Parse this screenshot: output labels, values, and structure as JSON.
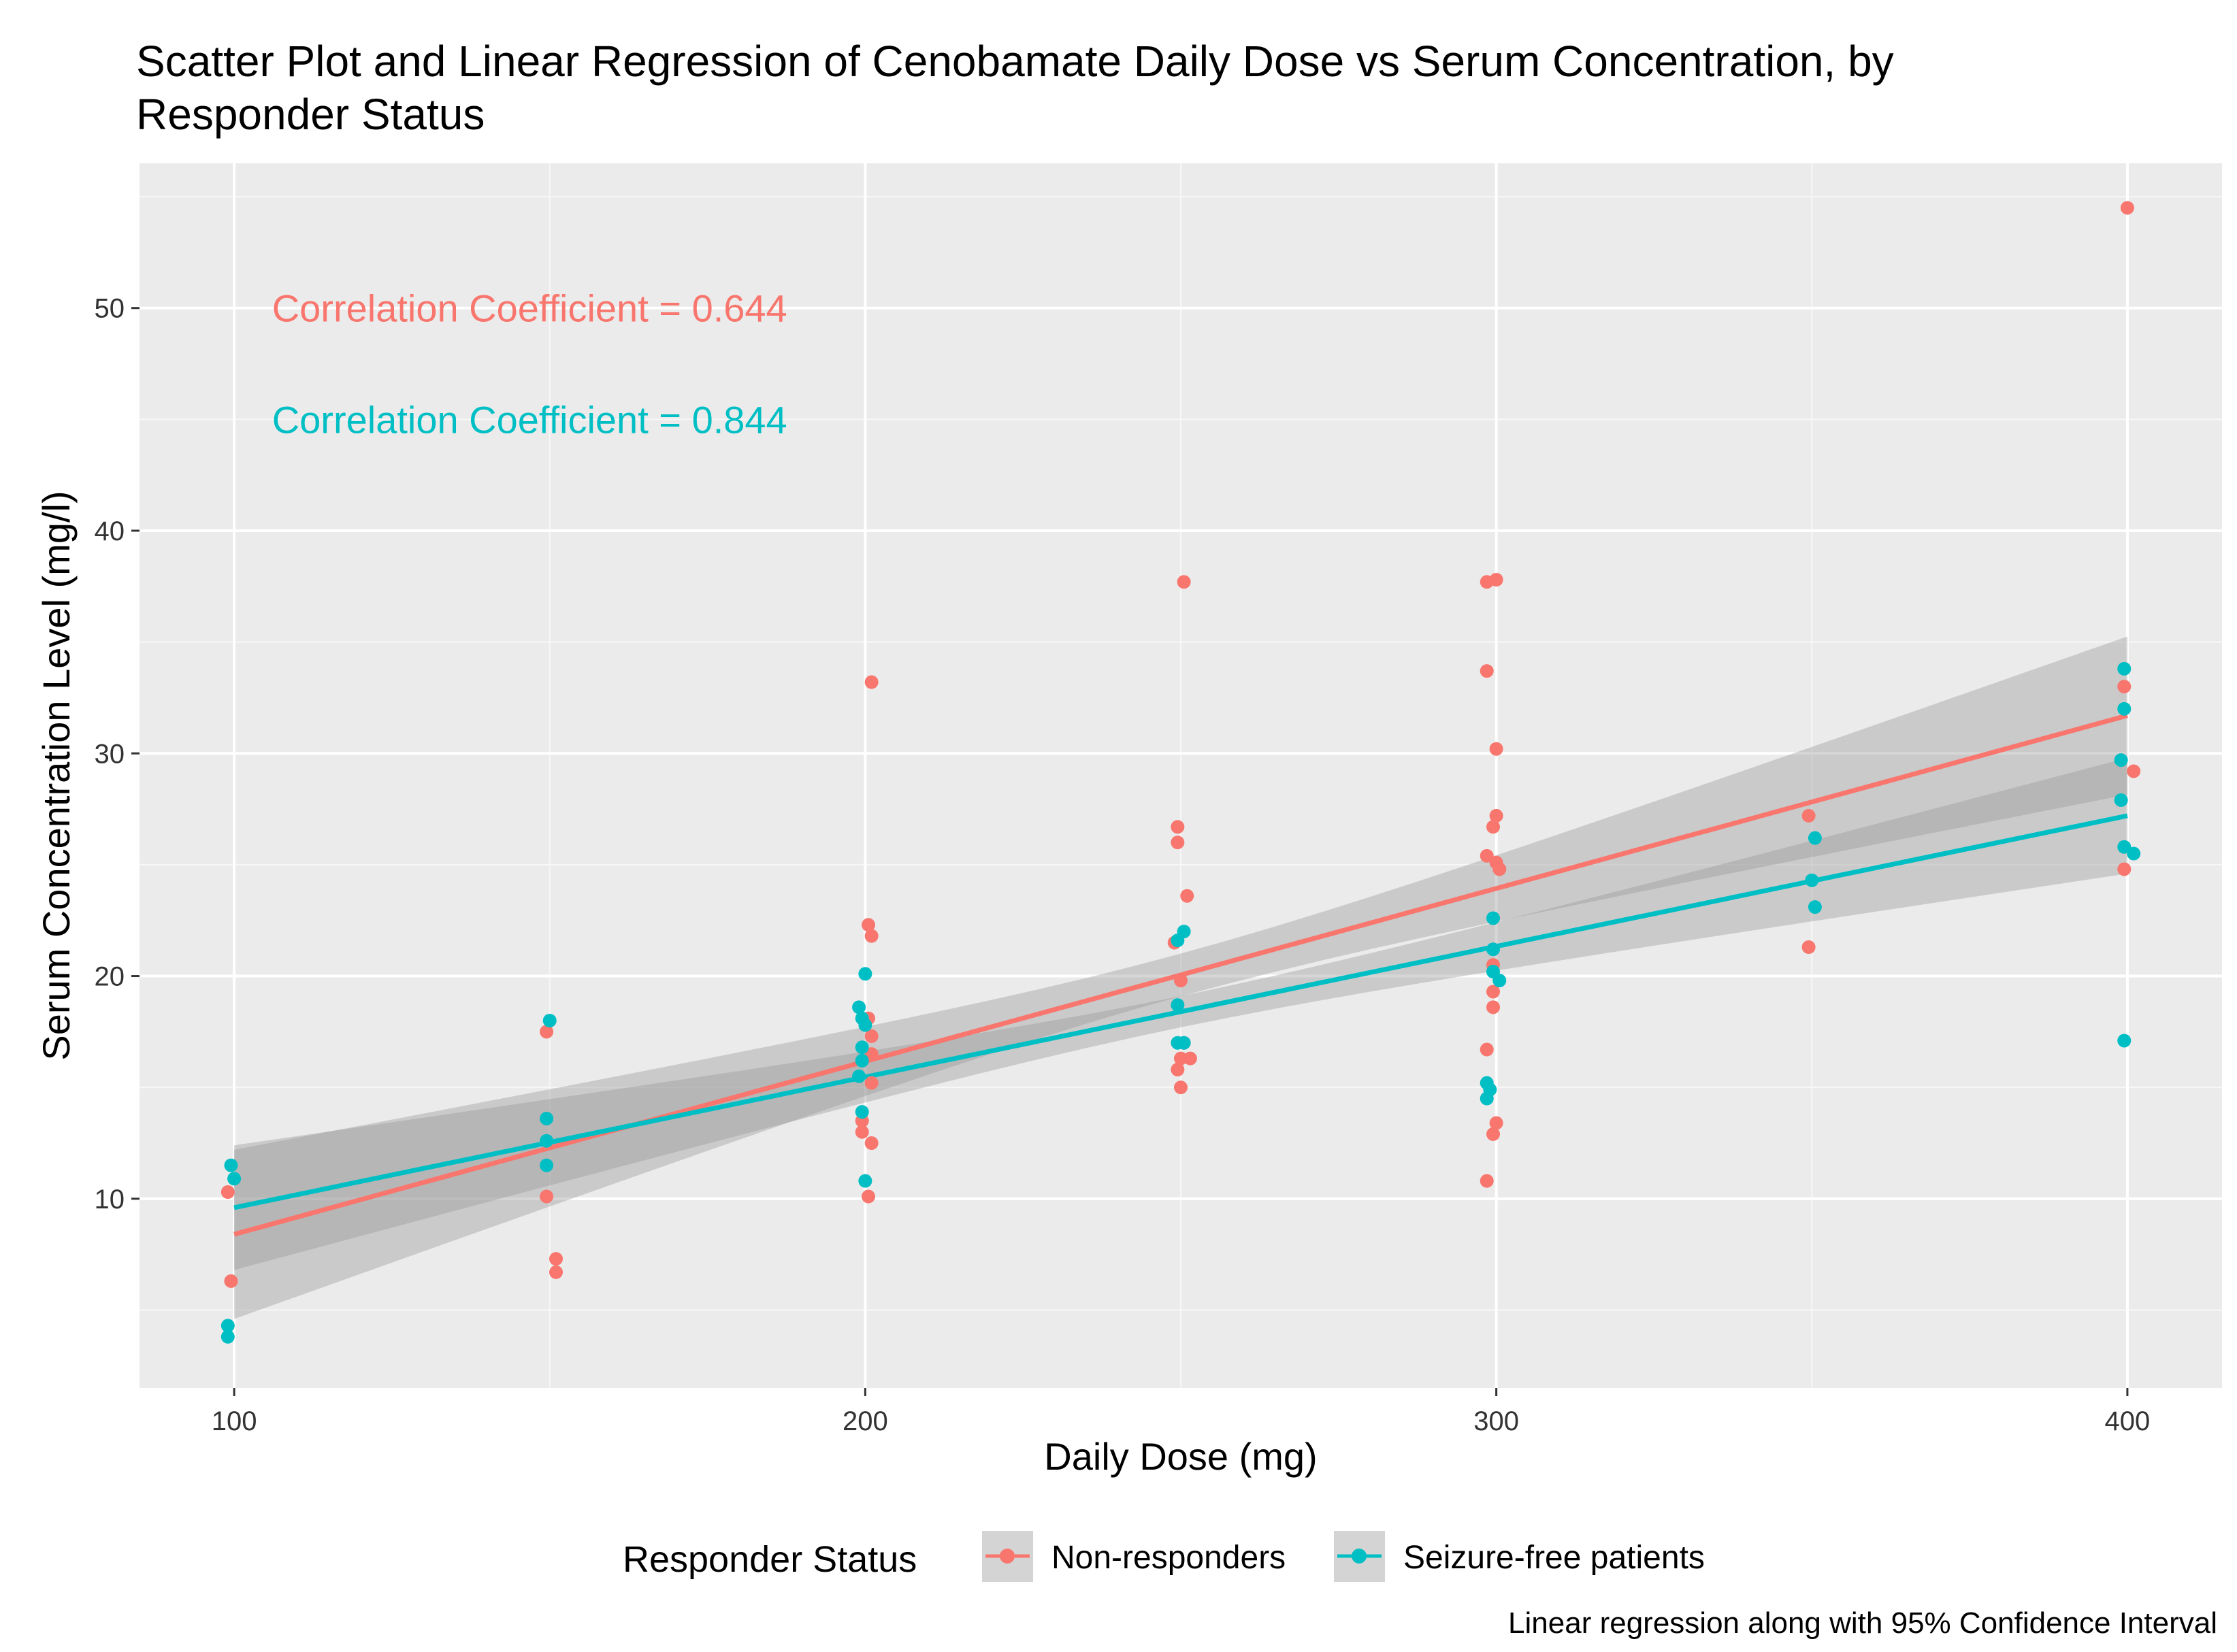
{
  "chart_data": {
    "type": "scatter",
    "title_line1": "Scatter Plot and Linear Regression of Cenobamate Daily Dose vs Serum Concentration, by",
    "title_line2": "Responder Status",
    "xlabel": "Daily Dose (mg)",
    "ylabel": "Serum Concentration Level (mg/l)",
    "xlim": [
      85,
      415
    ],
    "ylim": [
      1.5,
      56.5
    ],
    "x_ticks": [
      100,
      200,
      300,
      400
    ],
    "y_ticks": [
      10,
      20,
      30,
      40,
      50
    ],
    "x_tick_labels": [
      "100",
      "200",
      "300",
      "400"
    ],
    "y_tick_labels": [
      "10",
      "20",
      "30",
      "40",
      "50"
    ],
    "grid": true,
    "legend": {
      "title": "Responder Status",
      "position": "bottom",
      "items": [
        "Non-responders",
        "Seizure-free patients"
      ]
    },
    "annotations": [
      {
        "text": "Correlation Coefficient = 0.644",
        "series": 0,
        "x": 106,
        "y": 50
      },
      {
        "text": "Correlation Coefficient = 0.844",
        "series": 1,
        "x": 106,
        "y": 45
      }
    ],
    "caption": "Linear regression along with 95% Confidence Interval",
    "series": [
      {
        "name": "Non-responders",
        "color": "#F8766D",
        "points": [
          [
            99,
            10.3
          ],
          [
            99.5,
            6.3
          ],
          [
            149.5,
            17.5
          ],
          [
            149.5,
            10.1
          ],
          [
            151,
            7.3
          ],
          [
            151,
            6.7
          ],
          [
            199.5,
            13.5
          ],
          [
            200.5,
            22.3
          ],
          [
            201,
            21.8
          ],
          [
            200.5,
            18.1
          ],
          [
            201,
            17.3
          ],
          [
            201,
            16.5
          ],
          [
            201,
            15.2
          ],
          [
            199.5,
            13.0
          ],
          [
            201,
            12.5
          ],
          [
            200.5,
            10.1
          ],
          [
            201,
            33.2
          ],
          [
            249.5,
            26.7
          ],
          [
            249.5,
            26.0
          ],
          [
            251,
            23.6
          ],
          [
            249,
            21.5
          ],
          [
            250,
            19.8
          ],
          [
            250.5,
            17.0
          ],
          [
            250,
            16.3
          ],
          [
            251.5,
            16.3
          ],
          [
            249.5,
            15.8
          ],
          [
            250,
            15.0
          ],
          [
            250.5,
            37.7
          ],
          [
            298.5,
            37.7
          ],
          [
            300,
            37.8
          ],
          [
            298.5,
            33.7
          ],
          [
            300,
            30.2
          ],
          [
            300,
            27.2
          ],
          [
            299.5,
            26.7
          ],
          [
            298.5,
            25.4
          ],
          [
            300,
            25.1
          ],
          [
            300.5,
            24.8
          ],
          [
            299.5,
            20.5
          ],
          [
            299.5,
            19.3
          ],
          [
            299.5,
            18.6
          ],
          [
            298.5,
            16.7
          ],
          [
            300,
            13.4
          ],
          [
            299.5,
            12.9
          ],
          [
            298.5,
            10.8
          ],
          [
            349.5,
            27.2
          ],
          [
            349.5,
            21.3
          ],
          [
            400,
            54.5
          ],
          [
            399.5,
            33.0
          ],
          [
            401,
            29.2
          ],
          [
            399.5,
            24.8
          ]
        ],
        "regression": {
          "x0": 100,
          "y0": 8.4,
          "x1": 400,
          "y1": 31.7,
          "ci_lo0": 4.6,
          "ci_hi0": 12.2,
          "ci_lo1": 28.1,
          "ci_hi1": 35.2
        }
      },
      {
        "name": "Seizure-free patients",
        "color": "#00BFC4",
        "points": [
          [
            99.5,
            11.5
          ],
          [
            100,
            10.9
          ],
          [
            99,
            4.3
          ],
          [
            99,
            3.8
          ],
          [
            150,
            18.0
          ],
          [
            149.5,
            13.6
          ],
          [
            149.5,
            12.6
          ],
          [
            149.5,
            11.5
          ],
          [
            200,
            20.1
          ],
          [
            199,
            18.6
          ],
          [
            199.5,
            18.1
          ],
          [
            200,
            17.8
          ],
          [
            199.5,
            16.8
          ],
          [
            199.5,
            16.2
          ],
          [
            199,
            15.5
          ],
          [
            199.5,
            13.9
          ],
          [
            200,
            10.8
          ],
          [
            250.5,
            22.0
          ],
          [
            249.5,
            21.6
          ],
          [
            249.5,
            18.7
          ],
          [
            249.5,
            17.0
          ],
          [
            250.5,
            17.0
          ],
          [
            299.5,
            22.6
          ],
          [
            299.5,
            21.2
          ],
          [
            299.5,
            20.2
          ],
          [
            300.5,
            19.8
          ],
          [
            298.5,
            15.2
          ],
          [
            299,
            14.9
          ],
          [
            298.5,
            14.5
          ],
          [
            350.5,
            26.2
          ],
          [
            350,
            24.3
          ],
          [
            350.5,
            23.1
          ],
          [
            399.5,
            33.8
          ],
          [
            399.5,
            32.0
          ],
          [
            399,
            29.7
          ],
          [
            399,
            27.9
          ],
          [
            399.5,
            25.8
          ],
          [
            401,
            25.5
          ],
          [
            399.5,
            17.1
          ]
        ],
        "regression": {
          "x0": 100,
          "y0": 9.6,
          "x1": 400,
          "y1": 27.2,
          "ci_lo0": 6.8,
          "ci_hi0": 12.4,
          "ci_lo1": 24.6,
          "ci_hi1": 29.8
        }
      }
    ]
  }
}
